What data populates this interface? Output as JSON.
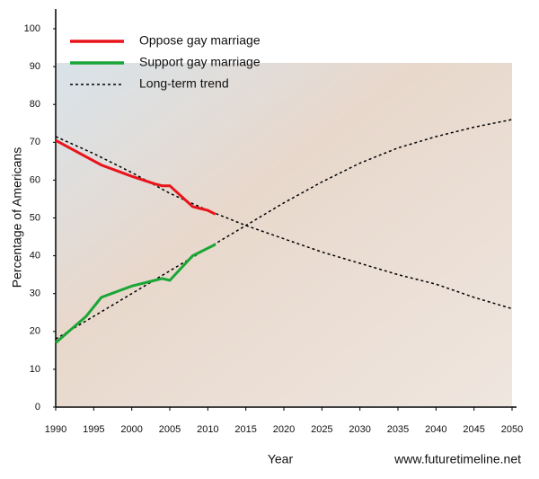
{
  "chart_data": {
    "type": "line",
    "ylabel": "Percentage of Americans",
    "xlabel": "Year",
    "source": "www.futuretimeline.net",
    "xlim": [
      1990,
      2050
    ],
    "xticks": [
      1990,
      1995,
      2000,
      2005,
      2010,
      2015,
      2020,
      2025,
      2030,
      2035,
      2040,
      2045,
      2050
    ],
    "ylim": [
      0,
      100
    ],
    "yticks": [
      0,
      10,
      20,
      30,
      40,
      50,
      60,
      70,
      80,
      90,
      100
    ],
    "legend": "upper-left",
    "series": [
      {
        "name": "Oppose gay marriage",
        "color": "#e8141b",
        "x": [
          1990,
          1996,
          2000,
          2003,
          2004,
          2005,
          2008,
          2009,
          2010,
          2011
        ],
        "values": [
          70.5,
          64,
          61,
          59,
          58.5,
          58.5,
          53,
          52.5,
          52,
          51
        ]
      },
      {
        "name": "Support gay marriage",
        "color": "#1aa637",
        "x": [
          1990,
          1994,
          1996,
          1998,
          2000,
          2003,
          2004,
          2005,
          2008,
          2010,
          2011
        ],
        "values": [
          17,
          24,
          29,
          30.5,
          32,
          33.5,
          34,
          33.5,
          40,
          42,
          43
        ]
      }
    ],
    "trend": {
      "name": "Long-term trend",
      "color": "#000000",
      "x": [
        1990,
        1995,
        2000,
        2005,
        2010,
        2015,
        2020,
        2025,
        2030,
        2035,
        2040,
        2045,
        2050
      ],
      "oppose": [
        71.5,
        67,
        62,
        56.5,
        52,
        48,
        44.5,
        41,
        38,
        35,
        32.5,
        29,
        26
      ],
      "support": [
        18,
        24,
        30,
        36,
        42,
        48,
        54,
        59.5,
        64.5,
        68.5,
        71.5,
        74,
        76
      ]
    }
  }
}
